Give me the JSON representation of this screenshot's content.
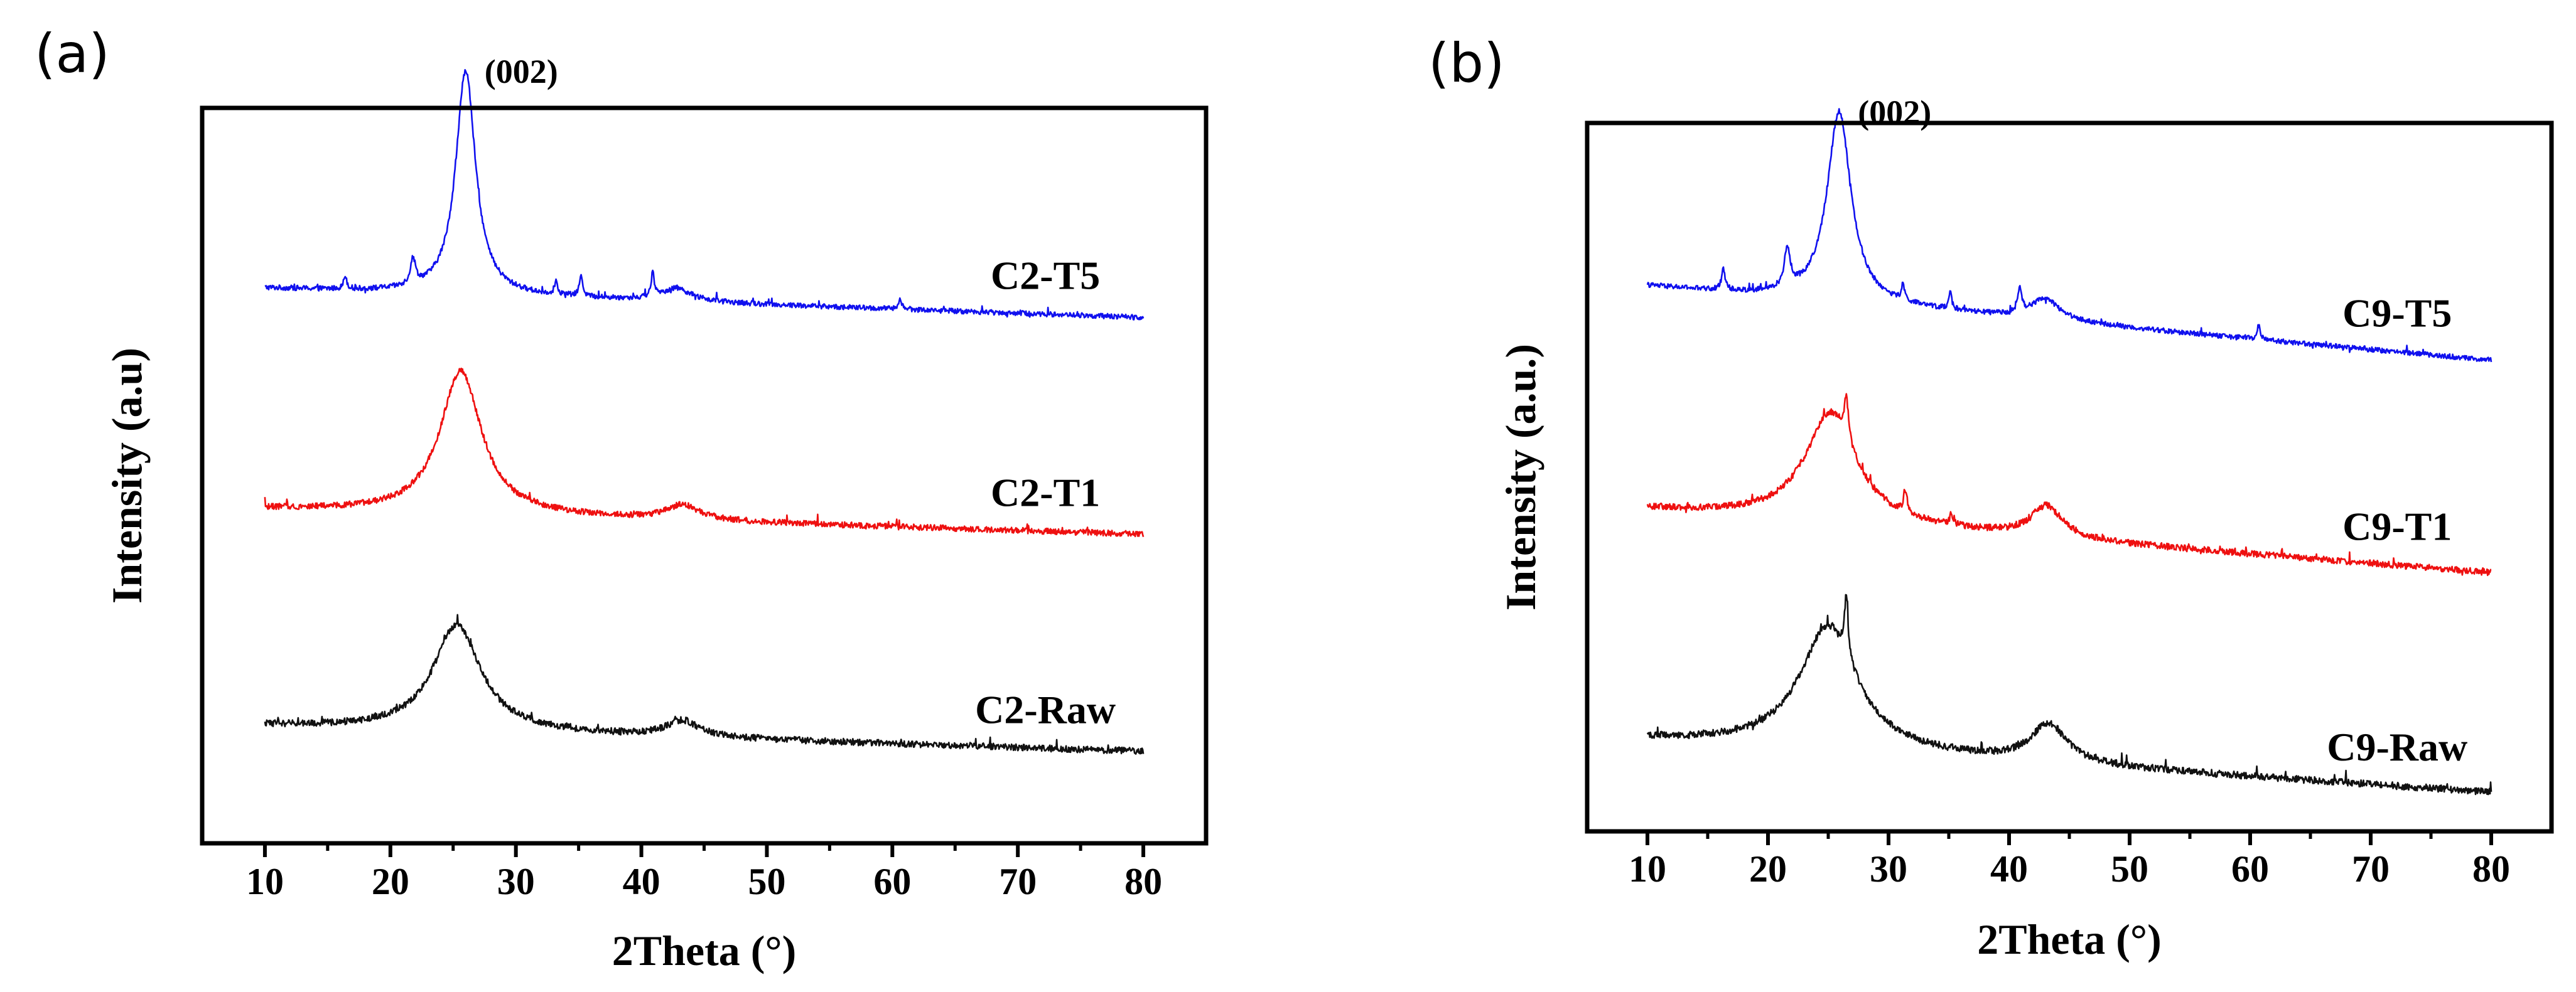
{
  "chart_data": [
    {
      "type": "line",
      "panel_label": "(a)",
      "xlabel": "2Theta (°)",
      "ylabel": "Intensity (a.u)",
      "xlim": [
        5,
        85
      ],
      "ylim": [
        0,
        10
      ],
      "xticks": [
        10,
        20,
        30,
        40,
        50,
        60,
        70,
        80
      ],
      "xtick_labels": [
        "10",
        "20",
        "30",
        "40",
        "50",
        "60",
        "70",
        "80"
      ],
      "yticks_shown": false,
      "annotation": {
        "text": "(002)",
        "x": 26.0
      },
      "series": [
        {
          "name": "C2-T5",
          "color": "#1010ee",
          "baseline": 7.55,
          "end_value": 7.15,
          "noise": 0.035,
          "peaks": [
            {
              "center": 26.0,
              "height": 3.05,
              "width": 0.95
            },
            {
              "center": 21.8,
              "height": 0.35,
              "width": 0.25
            },
            {
              "center": 16.4,
              "height": 0.18,
              "width": 0.15
            },
            {
              "center": 33.2,
              "height": 0.18,
              "width": 0.15
            },
            {
              "center": 35.2,
              "height": 0.3,
              "width": 0.15
            },
            {
              "center": 40.9,
              "height": 0.32,
              "width": 0.15
            },
            {
              "center": 42.8,
              "height": 0.18,
              "width": 1.4
            },
            {
              "center": 60.6,
              "height": 0.15,
              "width": 0.15
            }
          ]
        },
        {
          "name": "C2-T1",
          "color": "#ee1010",
          "baseline": 4.55,
          "end_value": 4.2,
          "noise": 0.04,
          "peaks": [
            {
              "center": 25.6,
              "height": 1.95,
              "width": 2.0
            },
            {
              "center": 43.3,
              "height": 0.2,
              "width": 1.6
            }
          ]
        },
        {
          "name": "C2-Raw",
          "color": "#111111",
          "baseline": 1.6,
          "end_value": 1.25,
          "noise": 0.045,
          "peaks": [
            {
              "center": 25.3,
              "height": 1.45,
              "width": 2.3
            },
            {
              "center": 43.3,
              "height": 0.22,
              "width": 1.6
            }
          ]
        }
      ]
    },
    {
      "type": "line",
      "panel_label": "(b)",
      "xlabel": "2Theta (°)",
      "ylabel": "Intensity (a.u.)",
      "xlim": [
        5,
        85
      ],
      "ylim": [
        0,
        10
      ],
      "xticks": [
        10,
        20,
        30,
        40,
        50,
        60,
        70,
        80
      ],
      "xtick_labels": [
        "10",
        "20",
        "30",
        "40",
        "50",
        "60",
        "70",
        "80"
      ],
      "yticks_shown": false,
      "annotation": {
        "text": "(002)",
        "x": 25.9
      },
      "series": [
        {
          "name": "C9-T5",
          "color": "#1010ee",
          "baseline": 7.7,
          "end_value": 6.65,
          "noise": 0.035,
          "peaks": [
            {
              "center": 25.9,
              "height": 2.7,
              "width": 1.2
            },
            {
              "center": 21.6,
              "height": 0.55,
              "width": 0.3
            },
            {
              "center": 16.3,
              "height": 0.3,
              "width": 0.18
            },
            {
              "center": 31.2,
              "height": 0.22,
              "width": 0.15
            },
            {
              "center": 35.1,
              "height": 0.25,
              "width": 0.15
            },
            {
              "center": 40.9,
              "height": 0.35,
              "width": 0.18
            },
            {
              "center": 43.0,
              "height": 0.3,
              "width": 1.5
            },
            {
              "center": 60.7,
              "height": 0.2,
              "width": 0.15
            }
          ]
        },
        {
          "name": "C9-T1",
          "color": "#ee1010",
          "baseline": 4.55,
          "end_value": 3.65,
          "noise": 0.045,
          "peaks": [
            {
              "center": 25.2,
              "height": 1.55,
              "width": 2.6
            },
            {
              "center": 26.5,
              "height": 0.6,
              "width": 0.2
            },
            {
              "center": 31.4,
              "height": 0.3,
              "width": 0.18
            },
            {
              "center": 35.2,
              "height": 0.15,
              "width": 0.15
            },
            {
              "center": 43.1,
              "height": 0.45,
              "width": 1.6
            }
          ]
        },
        {
          "name": "C9-Raw",
          "color": "#111111",
          "baseline": 1.3,
          "end_value": 0.55,
          "noise": 0.05,
          "peaks": [
            {
              "center": 25.0,
              "height": 1.75,
              "width": 2.9
            },
            {
              "center": 26.5,
              "height": 0.85,
              "width": 0.18
            },
            {
              "center": 43.3,
              "height": 0.55,
              "width": 1.8
            }
          ]
        }
      ]
    }
  ]
}
